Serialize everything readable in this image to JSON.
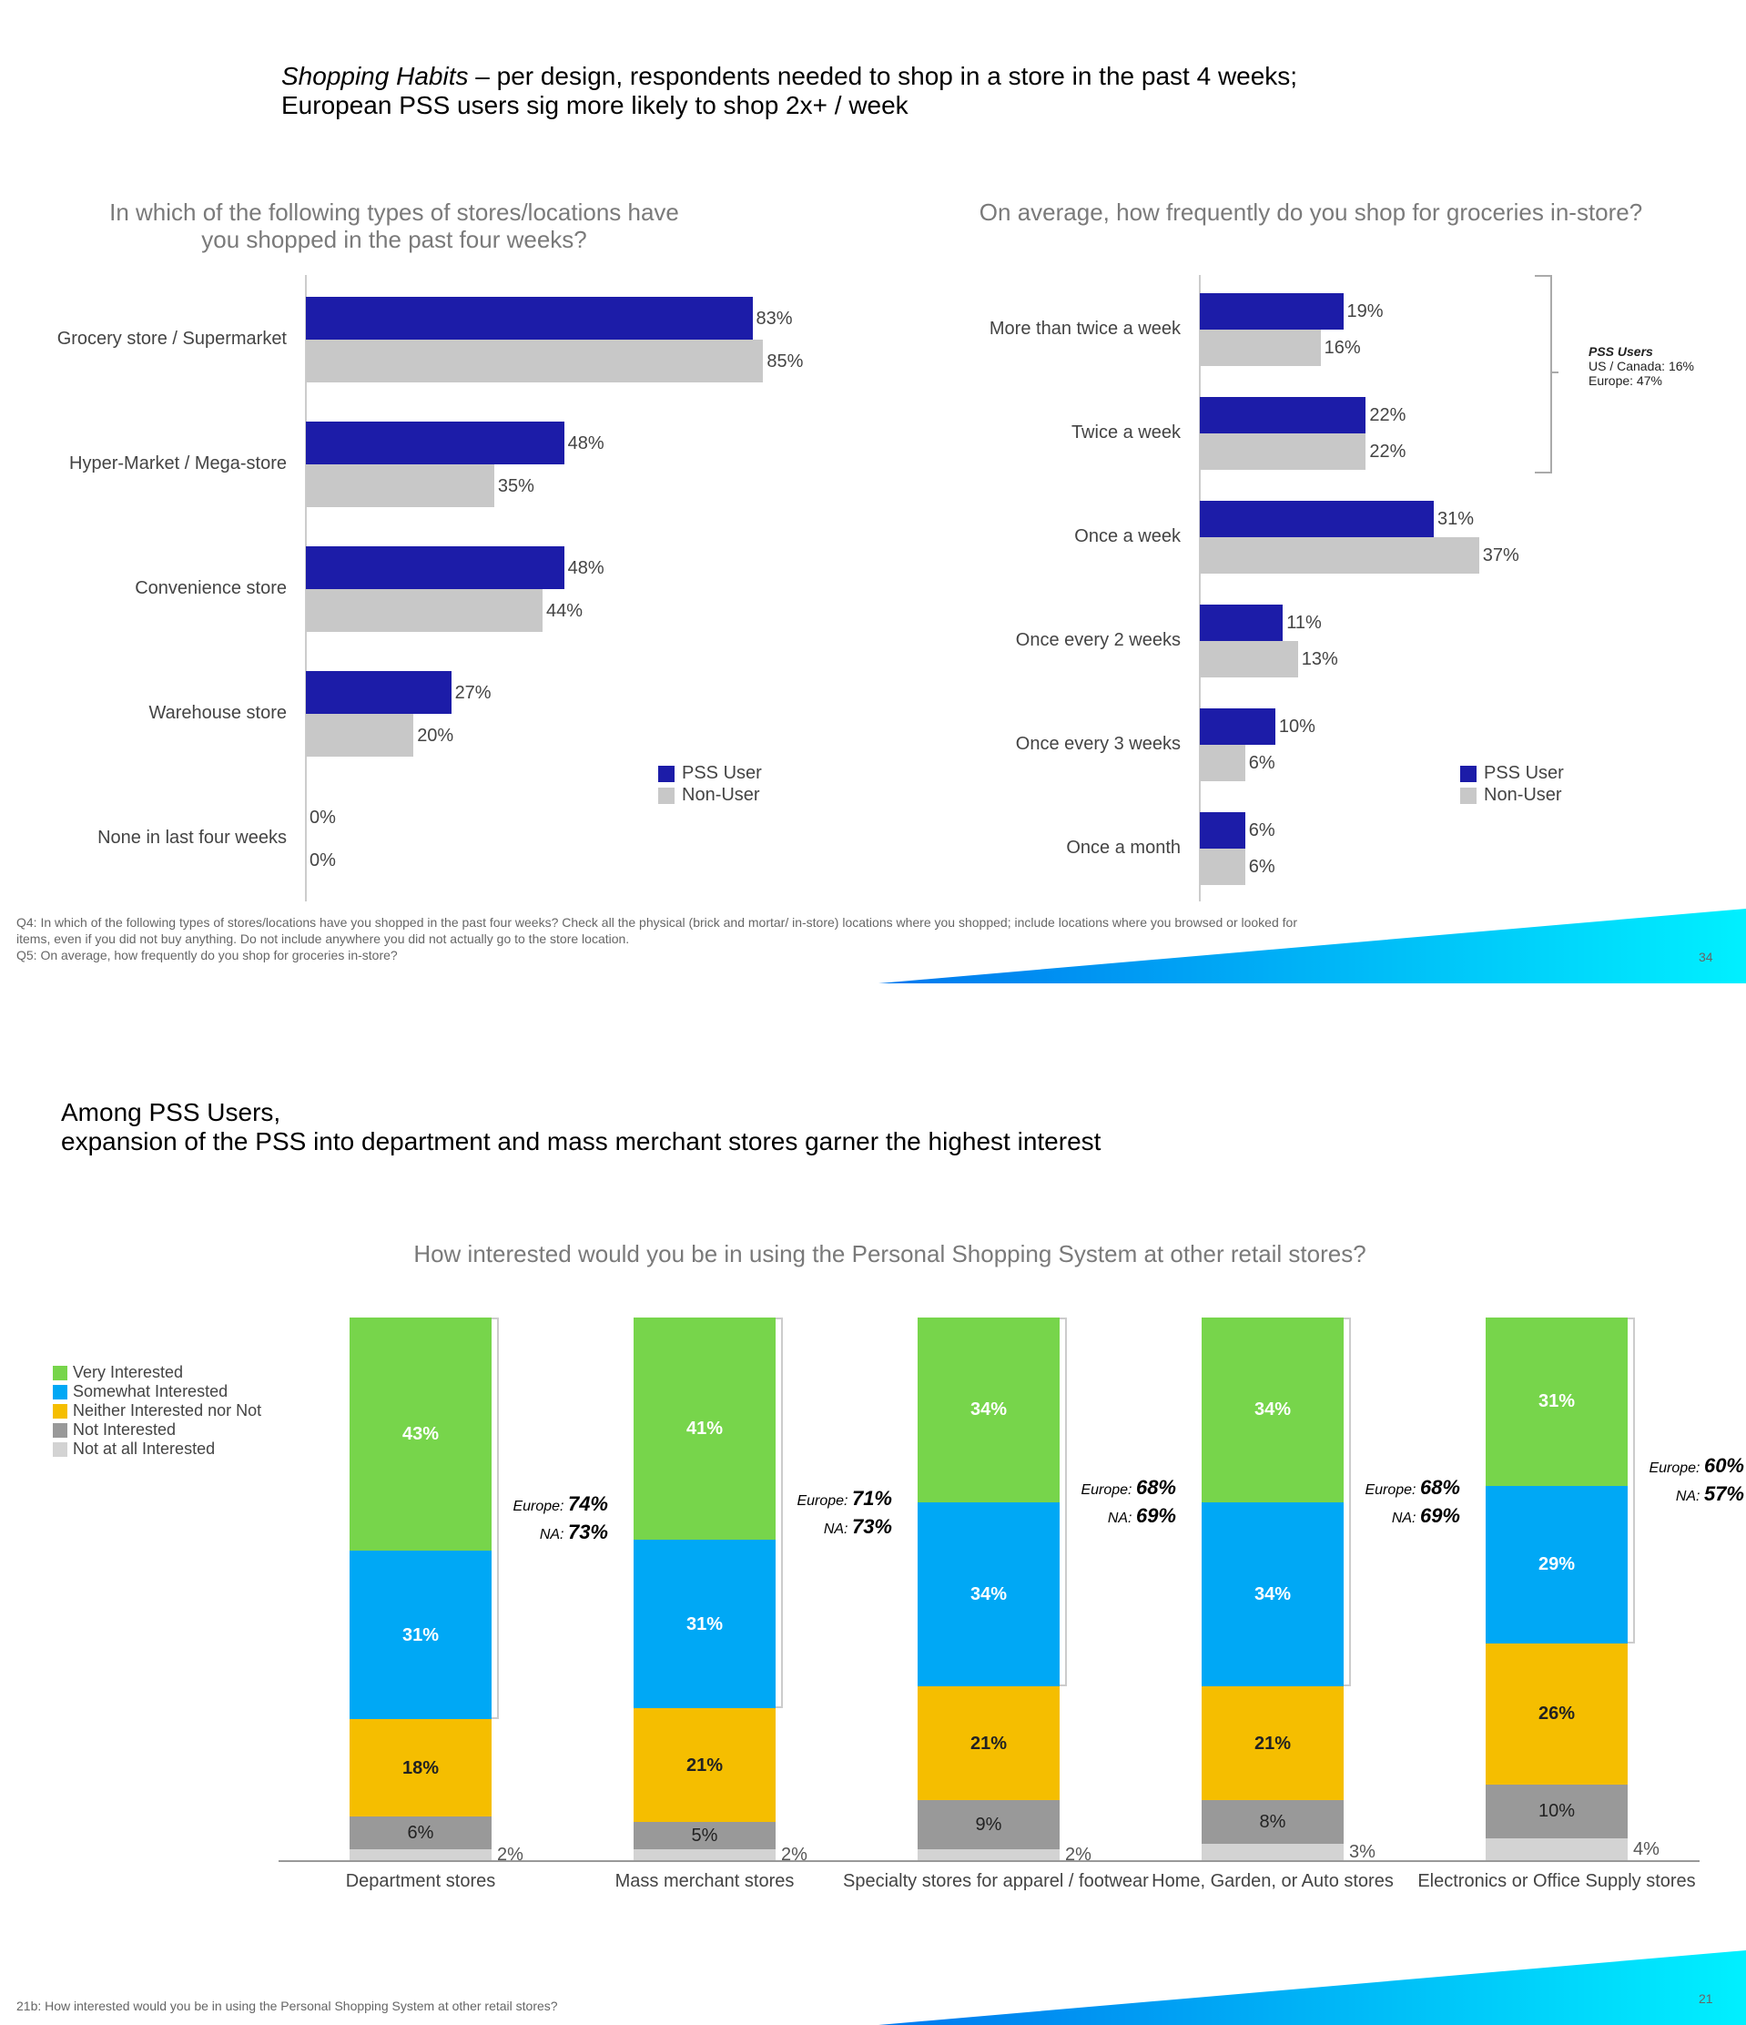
{
  "slide1": {
    "title_italic": "Shopping Habits",
    "title_rest": " – per design, respondents needed to shop in a store in the past 4 weeks;",
    "title_line2": "European PSS users sig more likely to shop 2x+ / week",
    "footnote_lines": [
      "Q4: In which of the following types of stores/locations have you shopped in the past four weeks? Check all the physical (brick and mortar/ in-store) locations where you shopped; include locations where you browsed or looked for",
      "items, even if you did not buy anything. Do not include anywhere you did not actually go to the store location.",
      "Q5: On average, how frequently do you shop for groceries in-store?"
    ],
    "page_number": "34",
    "bracket_note": {
      "title": "PSS Users",
      "line1": "US / Canada: 16%",
      "line2": "Europe: 47%"
    }
  },
  "slide2": {
    "title_line1": "Among PSS Users,",
    "title_line2": "expansion of the PSS into department and mass merchant stores garner the highest interest",
    "footnote": "21b: How interested would you be in using the Personal Shopping System at other retail stores?",
    "page_number": "21"
  },
  "colors": {
    "pss": "#1c1ca8",
    "non": "#c8c8c8",
    "very": "#77d54b",
    "somewhat": "#00a8f5",
    "neither": "#f5be00",
    "not": "#999999",
    "notatall": "#d3d3d3",
    "accent_gradient": [
      "#0077ee",
      "#00f0ff"
    ]
  },
  "chart_data": [
    {
      "type": "bar",
      "orientation": "horizontal",
      "title_line1": "In which of the following types of stores/locations have",
      "title_line2": "you shopped in the past four weeks?",
      "categories": [
        "Grocery store / Supermarket",
        "Hyper-Market  / Mega-store",
        "Convenience store",
        "Warehouse store",
        "None in last four weeks"
      ],
      "series": [
        {
          "name": "PSS User",
          "values": [
            83,
            48,
            48,
            27,
            0
          ]
        },
        {
          "name": "Non-User",
          "values": [
            85,
            35,
            44,
            20,
            0
          ]
        }
      ],
      "value_labels": [
        [
          "83%",
          "48%",
          "48%",
          "27%",
          "0%"
        ],
        [
          "85%",
          "35%",
          "44%",
          "20%",
          "0%"
        ]
      ],
      "legend": "bottom-right",
      "xlim": [
        0,
        100
      ]
    },
    {
      "type": "bar",
      "orientation": "horizontal",
      "title": "On average, how frequently do you shop for groceries in-store?",
      "categories": [
        "More than twice a week",
        "Twice a week",
        "Once a week",
        "Once every 2 weeks",
        "Once every 3 weeks",
        "Once a month"
      ],
      "series": [
        {
          "name": "PSS User",
          "values": [
            19,
            22,
            31,
            11,
            10,
            6
          ]
        },
        {
          "name": "Non-User",
          "values": [
            16,
            22,
            37,
            13,
            6,
            6
          ]
        }
      ],
      "value_labels": [
        [
          "19%",
          "22%",
          "31%",
          "11%",
          "10%",
          "6%"
        ],
        [
          "16%",
          "22%",
          "37%",
          "13%",
          "6%",
          "6%"
        ]
      ],
      "legend": "bottom-right",
      "xlim": [
        0,
        50
      ]
    },
    {
      "type": "bar",
      "stacked": true,
      "title": "How interested would you be in using the Personal Shopping System at other retail stores?",
      "categories": [
        "Department stores",
        "Mass merchant stores",
        "Specialty stores for apparel / footwear",
        "Home, Garden, or Auto stores",
        "Electronics or Office Supply stores"
      ],
      "series": [
        {
          "name": "Very Interested",
          "values": [
            43,
            41,
            34,
            34,
            31
          ]
        },
        {
          "name": "Somewhat Interested",
          "values": [
            31,
            31,
            34,
            34,
            29
          ]
        },
        {
          "name": "Neither Interested nor Not",
          "values": [
            18,
            21,
            21,
            21,
            26
          ]
        },
        {
          "name": "Not Interested",
          "values": [
            6,
            5,
            9,
            8,
            10
          ]
        },
        {
          "name": "Not at all Interested",
          "values": [
            2,
            2,
            2,
            3,
            4
          ]
        }
      ],
      "annotations": [
        {
          "europe_label": "Europe:",
          "europe": "74%",
          "na_label": "NA:",
          "na": "73%"
        },
        {
          "europe_label": "Europe:",
          "europe": "71%",
          "na_label": "NA:",
          "na": "73%"
        },
        {
          "europe_label": "Europe:",
          "europe": "68%",
          "na_label": "NA:",
          "na": "69%"
        },
        {
          "europe_label": "Europe:",
          "europe": "68%",
          "na_label": "NA:",
          "na": "69%"
        },
        {
          "europe_label": "Europe:",
          "europe": "60%",
          "na_label": "NA:",
          "na": "57%"
        }
      ],
      "legend": "top-left",
      "ylim": [
        0,
        100
      ]
    }
  ]
}
